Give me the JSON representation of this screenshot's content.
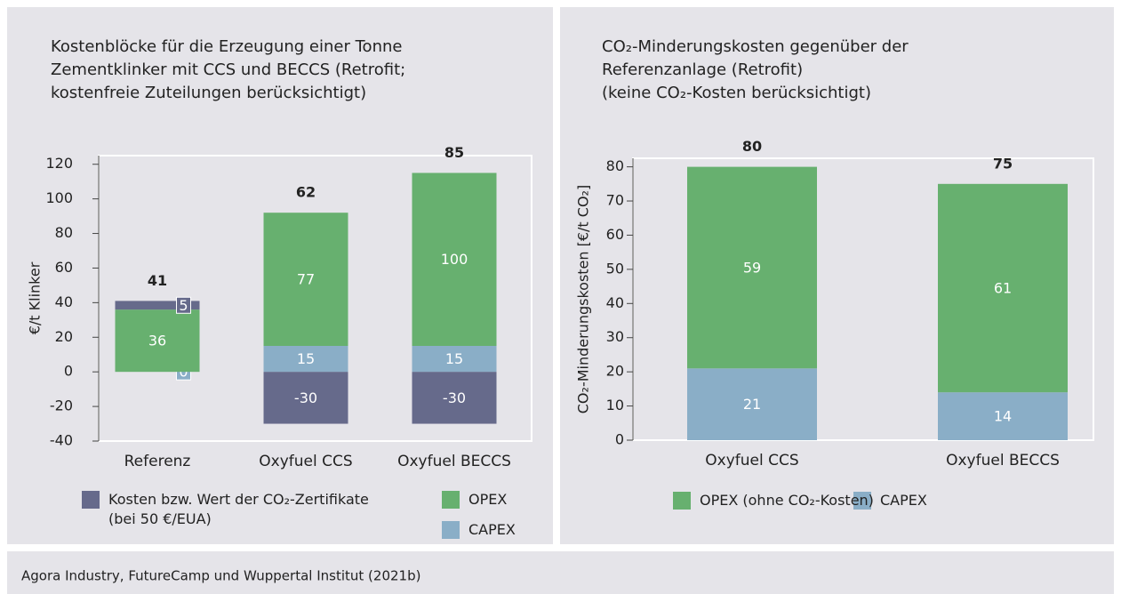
{
  "chart_data": [
    {
      "type": "stacked-bar",
      "title": "Kostenblöcke für die Erzeugung einer Tonne\nZementklinker mit CCS und BECCS (Retrofit;\nkostenfreie Zuteilungen berücksichtigt)",
      "ylabel": "€/t Klinker",
      "categories": [
        "Referenz",
        "Oxyfuel CCS",
        "Oxyfuel BECCS"
      ],
      "series": [
        {
          "name": "Kosten bzw. Wert der CO₂-Zertifikate\n(bei 50 €/EUA)",
          "color": "#666a8b",
          "values": [
            5,
            -30,
            -30
          ]
        },
        {
          "name": "OPEX",
          "color": "#67b06f",
          "values": [
            36,
            77,
            100
          ]
        },
        {
          "name": "CAPEX",
          "color": "#8aaec7",
          "values": [
            0,
            15,
            15
          ]
        }
      ],
      "totals": [
        41,
        62,
        85
      ],
      "ylim": [
        -40,
        125
      ],
      "yticks": [
        -40,
        -20,
        0,
        20,
        40,
        60,
        80,
        100,
        120
      ]
    },
    {
      "type": "stacked-bar",
      "title": "CO₂-Minderungskosten gegenüber der\nReferenzanlage (Retrofit)\n(keine CO₂-Kosten berücksichtigt)",
      "ylabel": "CO₂-Minderungskosten [€/t CO₂]",
      "categories": [
        "Oxyfuel CCS",
        "Oxyfuel BECCS"
      ],
      "series": [
        {
          "name": "OPEX (ohne CO₂-Kosten)",
          "color": "#67b06f",
          "values": [
            59,
            61
          ]
        },
        {
          "name": "CAPEX",
          "color": "#8aaec7",
          "values": [
            21,
            14
          ]
        }
      ],
      "totals": [
        80,
        75
      ],
      "ylim": [
        0,
        82.5
      ],
      "yticks": [
        0,
        10,
        20,
        30,
        40,
        50,
        60,
        70,
        80
      ]
    }
  ],
  "source": "Agora Industry, FutureCamp und Wuppertal Institut  (2021b)"
}
